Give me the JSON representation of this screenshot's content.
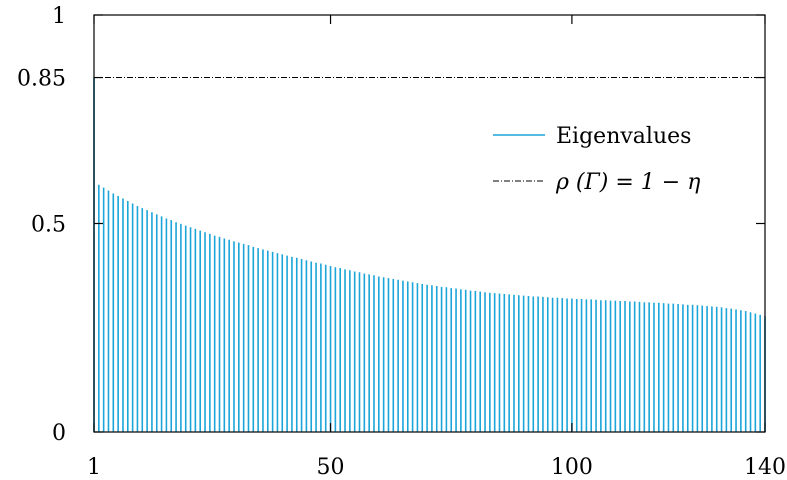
{
  "chart_data": {
    "type": "bar",
    "title": "",
    "xlabel": "",
    "ylabel": "",
    "xlim": [
      1,
      140
    ],
    "ylim": [
      0,
      1
    ],
    "x_ticks": [
      {
        "value": 1,
        "label": "1"
      },
      {
        "value": 50,
        "label": "50"
      },
      {
        "value": 100,
        "label": "100"
      },
      {
        "value": 140,
        "label": "140"
      }
    ],
    "y_ticks": [
      {
        "value": 0,
        "label": "0"
      },
      {
        "value": 0.5,
        "label": "0.5"
      },
      {
        "value": 0.85,
        "label": "0.85"
      },
      {
        "value": 1,
        "label": "1"
      }
    ],
    "grid": false,
    "legend_position": "right",
    "series": [
      {
        "name": "Eigenvalues",
        "kind": "impulse",
        "color": "#1ba5d8",
        "x": [
          1,
          2,
          3,
          4,
          5,
          6,
          7,
          8,
          9,
          10,
          11,
          12,
          13,
          14,
          15,
          16,
          17,
          18,
          19,
          20,
          21,
          22,
          23,
          24,
          25,
          26,
          27,
          28,
          29,
          30,
          31,
          32,
          33,
          34,
          35,
          36,
          37,
          38,
          39,
          40,
          41,
          42,
          43,
          44,
          45,
          46,
          47,
          48,
          49,
          50,
          51,
          52,
          53,
          54,
          55,
          56,
          57,
          58,
          59,
          60,
          61,
          62,
          63,
          64,
          65,
          66,
          67,
          68,
          69,
          70,
          71,
          72,
          73,
          74,
          75,
          76,
          77,
          78,
          79,
          80,
          81,
          82,
          83,
          84,
          85,
          86,
          87,
          88,
          89,
          90,
          91,
          92,
          93,
          94,
          95,
          96,
          97,
          98,
          99,
          100,
          101,
          102,
          103,
          104,
          105,
          106,
          107,
          108,
          109,
          110,
          111,
          112,
          113,
          114,
          115,
          116,
          117,
          118,
          119,
          120,
          121,
          122,
          123,
          124,
          125,
          126,
          127,
          128,
          129,
          130,
          131,
          132,
          133,
          134,
          135,
          136,
          137,
          138,
          139,
          140
        ],
        "values": [
          0.85,
          0.593,
          0.586,
          0.579,
          0.572,
          0.566,
          0.56,
          0.554,
          0.548,
          0.542,
          0.537,
          0.532,
          0.527,
          0.522,
          0.517,
          0.512,
          0.508,
          0.503,
          0.499,
          0.495,
          0.491,
          0.487,
          0.483,
          0.479,
          0.475,
          0.471,
          0.468,
          0.464,
          0.461,
          0.457,
          0.454,
          0.451,
          0.448,
          0.444,
          0.441,
          0.438,
          0.435,
          0.432,
          0.429,
          0.426,
          0.423,
          0.42,
          0.418,
          0.415,
          0.412,
          0.409,
          0.406,
          0.404,
          0.401,
          0.398,
          0.395,
          0.393,
          0.39,
          0.388,
          0.385,
          0.383,
          0.38,
          0.378,
          0.376,
          0.373,
          0.371,
          0.369,
          0.367,
          0.365,
          0.363,
          0.361,
          0.359,
          0.357,
          0.355,
          0.353,
          0.352,
          0.35,
          0.348,
          0.347,
          0.345,
          0.344,
          0.342,
          0.341,
          0.339,
          0.338,
          0.337,
          0.335,
          0.334,
          0.333,
          0.332,
          0.331,
          0.33,
          0.329,
          0.328,
          0.327,
          0.326,
          0.325,
          0.325,
          0.324,
          0.323,
          0.322,
          0.322,
          0.321,
          0.32,
          0.32,
          0.319,
          0.319,
          0.318,
          0.318,
          0.317,
          0.316,
          0.316,
          0.315,
          0.315,
          0.314,
          0.314,
          0.313,
          0.313,
          0.312,
          0.311,
          0.311,
          0.31,
          0.31,
          0.309,
          0.308,
          0.308,
          0.307,
          0.306,
          0.305,
          0.305,
          0.304,
          0.303,
          0.302,
          0.301,
          0.3,
          0.299,
          0.297,
          0.296,
          0.294,
          0.292,
          0.29,
          0.287,
          0.284,
          0.281,
          0.278
        ]
      },
      {
        "name": "ρ (Γ) = 1 − η",
        "kind": "hline",
        "color": "#000000",
        "dash": "dash-dot",
        "value": 0.85
      }
    ]
  }
}
